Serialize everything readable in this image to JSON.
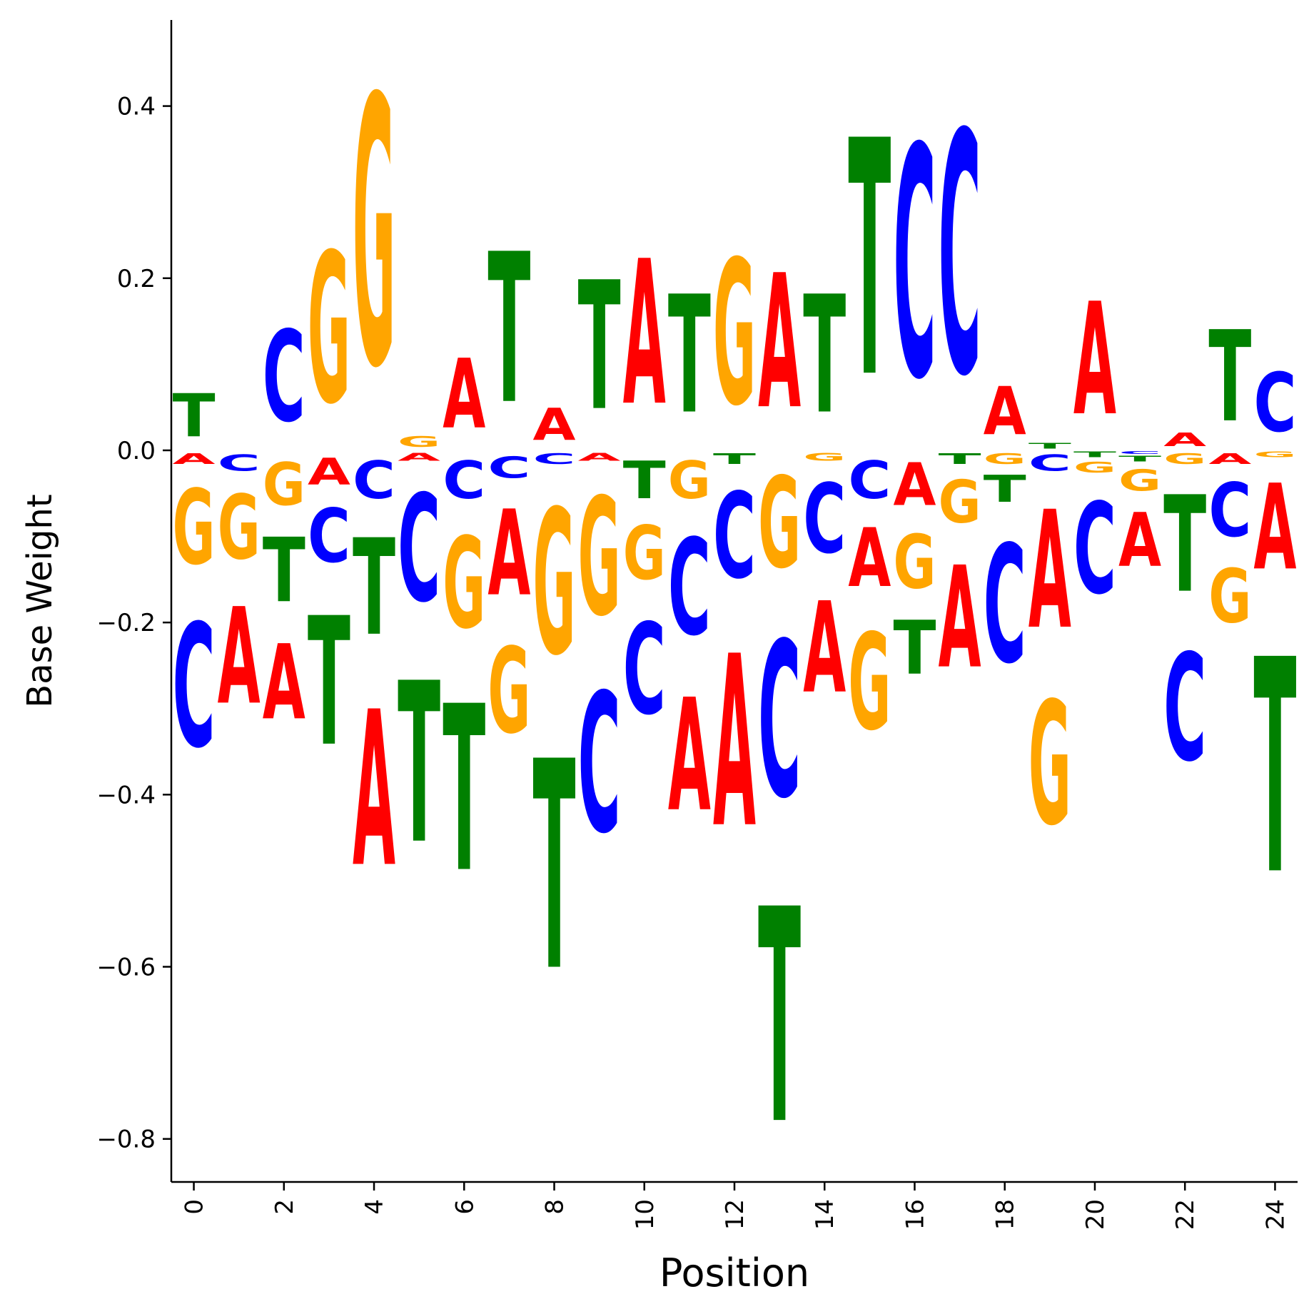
{
  "chart_data": {
    "type": "sequence-logo",
    "xlabel": "Position",
    "ylabel": "Base Weight",
    "xlim": [
      -0.5,
      24.5
    ],
    "ylim": [
      -0.85,
      0.5
    ],
    "x_ticks": [
      0,
      2,
      4,
      6,
      8,
      10,
      12,
      14,
      16,
      18,
      20,
      22,
      24
    ],
    "y_ticks": [
      -0.8,
      -0.6,
      -0.4,
      -0.2,
      0.0,
      0.2,
      0.4
    ],
    "y_tick_labels": [
      "−0.8",
      "−0.6",
      "−0.4",
      "−0.2",
      "0.0",
      "0.2",
      "0.4"
    ],
    "colors": {
      "A": "#ff0000",
      "C": "#0000ff",
      "G": "#ffa500",
      "T": "#008000"
    },
    "positions": [
      {
        "pos": 0,
        "A": -0.02,
        "C": -0.23,
        "G": -0.14,
        "T": 0.08
      },
      {
        "pos": 1,
        "A": -0.18,
        "C": -0.03,
        "G": -0.12,
        "T": 0.0
      },
      {
        "pos": 2,
        "A": -0.14,
        "C": 0.17,
        "G": -0.08,
        "T": -0.12
      },
      {
        "pos": 3,
        "A": -0.05,
        "C": -0.1,
        "G": 0.28,
        "T": -0.24
      },
      {
        "pos": 4,
        "A": -0.29,
        "C": -0.07,
        "G": 0.5,
        "T": -0.18
      },
      {
        "pos": 5,
        "A": -0.015,
        "C": -0.2,
        "G": 0.02,
        "T": -0.3
      },
      {
        "pos": 6,
        "A": 0.13,
        "C": -0.07,
        "G": -0.17,
        "T": -0.31
      },
      {
        "pos": 7,
        "A": -0.16,
        "C": -0.04,
        "G": -0.16,
        "T": 0.28
      },
      {
        "pos": 8,
        "A": 0.06,
        "C": -0.02,
        "G": -0.27,
        "T": -0.39
      },
      {
        "pos": 9,
        "A": -0.015,
        "C": -0.26,
        "G": -0.22,
        "T": 0.24
      },
      {
        "pos": 10,
        "A": 0.27,
        "C": -0.17,
        "G": -0.1,
        "T": -0.07
      },
      {
        "pos": 11,
        "A": -0.21,
        "C": -0.18,
        "G": -0.07,
        "T": 0.22
      },
      {
        "pos": 12,
        "A": -0.32,
        "C": -0.16,
        "G": 0.27,
        "T": -0.02
      },
      {
        "pos": 13,
        "A": 0.25,
        "C": -0.29,
        "G": -0.17,
        "T": -0.4
      },
      {
        "pos": 14,
        "A": -0.17,
        "C": -0.13,
        "G": -0.015,
        "T": 0.22
      },
      {
        "pos": 15,
        "A": -0.11,
        "C": -0.07,
        "G": -0.18,
        "T": 0.44
      },
      {
        "pos": 16,
        "A": -0.08,
        "C": 0.43,
        "G": -0.1,
        "T": -0.1
      },
      {
        "pos": 17,
        "A": -0.19,
        "C": 0.45,
        "G": -0.08,
        "T": -0.02
      },
      {
        "pos": 18,
        "A": 0.09,
        "C": -0.22,
        "G": -0.02,
        "T": -0.05
      },
      {
        "pos": 19,
        "A": -0.22,
        "C": -0.03,
        "G": -0.23,
        "T": 0.01
      },
      {
        "pos": 20,
        "A": 0.21,
        "C": -0.17,
        "G": -0.02,
        "T": -0.01
      },
      {
        "pos": 21,
        "A": -0.1,
        "C": -0.005,
        "G": -0.04,
        "T": -0.01
      },
      {
        "pos": 22,
        "A": 0.025,
        "C": -0.2,
        "G": -0.02,
        "T": -0.18
      },
      {
        "pos": 23,
        "A": -0.02,
        "C": -0.1,
        "G": -0.1,
        "T": 0.17
      },
      {
        "pos": 24,
        "A": -0.16,
        "C": 0.11,
        "G": -0.01,
        "T": -0.4
      }
    ]
  }
}
